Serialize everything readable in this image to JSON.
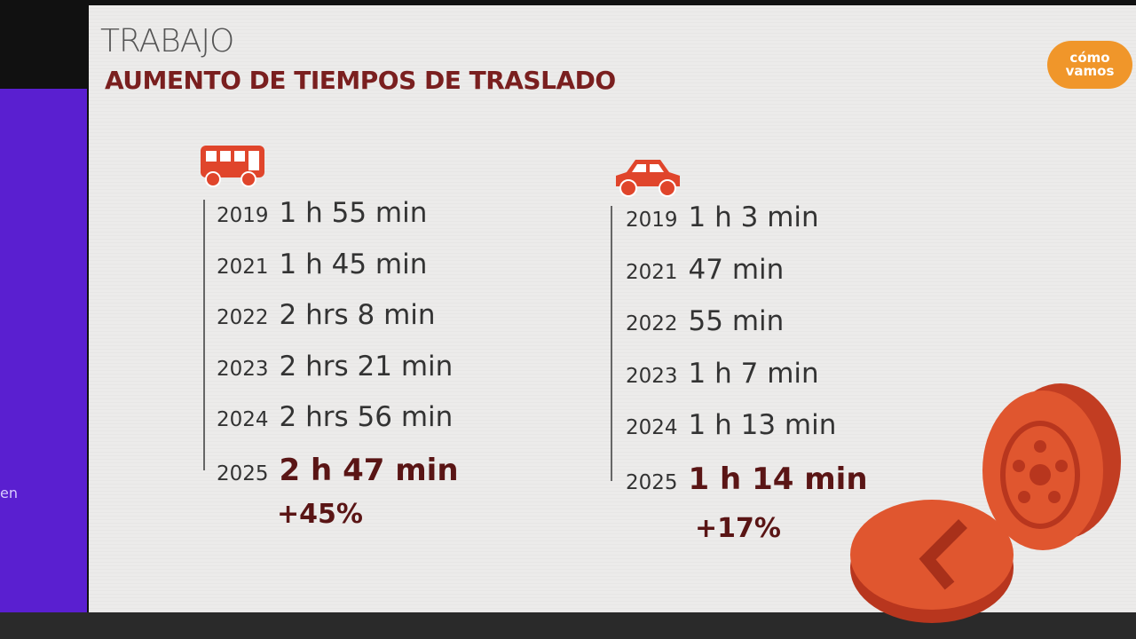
{
  "header": {
    "section": "TRABAJO",
    "title": "AUMENTO DE TIEMPOS DE TRASLADO"
  },
  "logo": {
    "text": "cómo vamos"
  },
  "side_panel": {
    "text": "en"
  },
  "columns": [
    {
      "rows": [
        {
          "year": "2019",
          "time": "1 h 55 min"
        },
        {
          "year": "2021",
          "time": "1 h 45 min"
        },
        {
          "year": "2022",
          "time": "2 hrs 8 min"
        },
        {
          "year": "2023",
          "time": "2 hrs 21 min"
        },
        {
          "year": "2024",
          "time": "2 hrs 56 min"
        },
        {
          "year": "2025",
          "time": "2 h 47 min"
        }
      ],
      "change": "+45%"
    },
    {
      "rows": [
        {
          "year": "2019",
          "time": "1 h 3 min"
        },
        {
          "year": "2021",
          "time": "47 min"
        },
        {
          "year": "2022",
          "time": "55 min"
        },
        {
          "year": "2023",
          "time": "1 h 7 min"
        },
        {
          "year": "2024",
          "time": "1 h 13 min"
        },
        {
          "year": "2025",
          "time": "1 h 14 min"
        }
      ],
      "change": "+17%"
    }
  ]
}
